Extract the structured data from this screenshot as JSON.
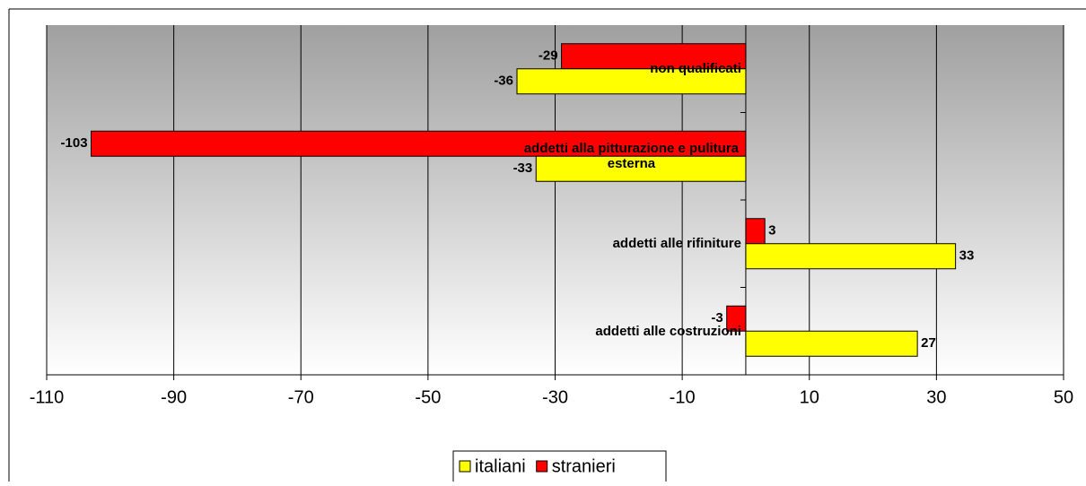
{
  "chart_data": {
    "type": "bar",
    "orientation": "horizontal",
    "categories": [
      "non qualificati",
      "addetti alla pitturazione e pulitura esterna",
      "addetti alle rifiniture",
      "addetti alle costruzioni"
    ],
    "series": [
      {
        "name": "italiani",
        "color": "#ffff00",
        "values": [
          -36,
          -33,
          33,
          27
        ]
      },
      {
        "name": "stranieri",
        "color": "#ff0000",
        "values": [
          -29,
          -103,
          3,
          -3
        ]
      }
    ],
    "xlim": [
      -110,
      50
    ],
    "xticks": [
      -110,
      -90,
      -70,
      -50,
      -30,
      -10,
      10,
      30,
      50
    ],
    "grid": true,
    "legend": "bottom"
  }
}
